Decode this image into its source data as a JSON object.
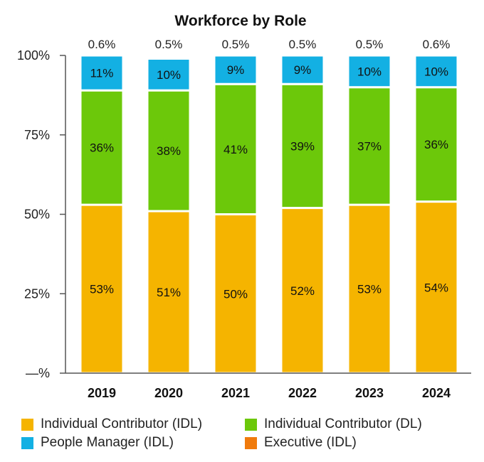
{
  "chart_data": {
    "type": "bar",
    "stacked": true,
    "title": "Workforce by Role",
    "categories": [
      "2019",
      "2020",
      "2021",
      "2022",
      "2023",
      "2024"
    ],
    "y_ticks": [
      "—%",
      "25%",
      "50%",
      "75%",
      "100%"
    ],
    "ylim": [
      0,
      100
    ],
    "series": [
      {
        "key": "ic_idl",
        "name": "Individual Contributor (IDL)",
        "color": "#f5b400",
        "values": [
          53,
          51,
          50,
          52,
          53,
          54
        ],
        "labels": [
          "53%",
          "51%",
          "50%",
          "52%",
          "53%",
          "54%"
        ]
      },
      {
        "key": "ic_dl",
        "name": "Individual Contributor (DL)",
        "color": "#6cc80a",
        "values": [
          36,
          38,
          41,
          39,
          37,
          36
        ],
        "labels": [
          "36%",
          "38%",
          "41%",
          "39%",
          "37%",
          "36%"
        ]
      },
      {
        "key": "pm_idl",
        "name": "People Manager (IDL)",
        "color": "#13b0e3",
        "values": [
          11,
          10,
          9,
          9,
          10,
          10
        ],
        "labels": [
          "11%",
          "10%",
          "9%",
          "9%",
          "10%",
          "10%"
        ]
      },
      {
        "key": "exec_idl",
        "name": "Executive (IDL)",
        "color": "#f07a0c",
        "values": [
          0.6,
          0.5,
          0.5,
          0.5,
          0.5,
          0.6
        ],
        "labels": [
          "0.6%",
          "0.5%",
          "0.5%",
          "0.5%",
          "0.5%",
          "0.6%"
        ]
      }
    ],
    "legend_position": "bottom"
  }
}
